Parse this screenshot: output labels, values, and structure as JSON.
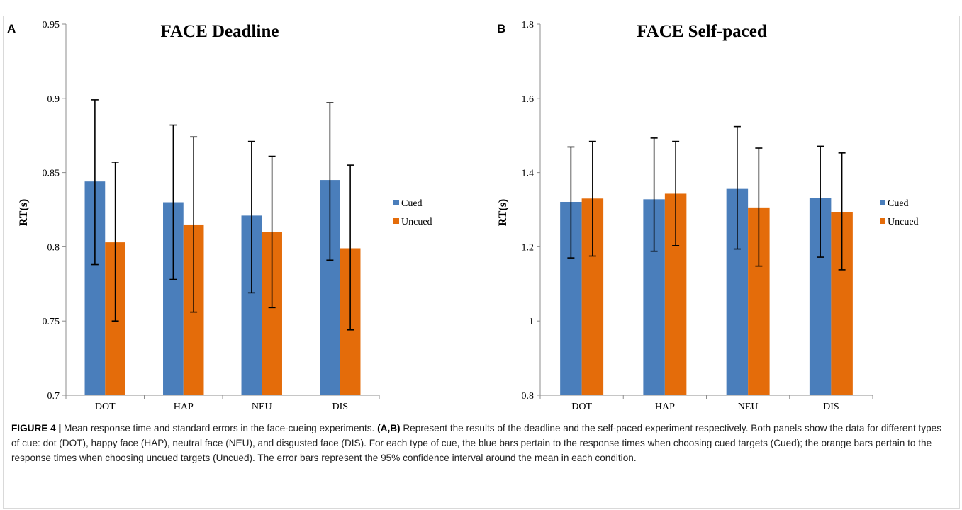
{
  "colors": {
    "cued": "#4a7ebb",
    "uncued": "#e46c0a",
    "axis": "#8c8c8c",
    "errorbar": "#000000"
  },
  "chart_data": [
    {
      "panel": "A",
      "type": "bar",
      "title": "FACE Deadline",
      "ylabel": "RT(s)",
      "xlabel": "",
      "categories": [
        "DOT",
        "HAP",
        "NEU",
        "DIS"
      ],
      "ylim": [
        0.7,
        0.95
      ],
      "yticks": [
        "0.7",
        "0.75",
        "0.8",
        "0.85",
        "0.9",
        "0.95"
      ],
      "grid": false,
      "legend": "right",
      "series": [
        {
          "name": "Cued",
          "values": [
            0.844,
            0.83,
            0.821,
            0.845
          ],
          "err_low": [
            0.788,
            0.778,
            0.769,
            0.791
          ],
          "err_high": [
            0.899,
            0.882,
            0.871,
            0.897
          ]
        },
        {
          "name": "Uncued",
          "values": [
            0.803,
            0.815,
            0.81,
            0.799
          ],
          "err_low": [
            0.75,
            0.756,
            0.759,
            0.744
          ],
          "err_high": [
            0.857,
            0.874,
            0.861,
            0.855
          ]
        }
      ]
    },
    {
      "panel": "B",
      "type": "bar",
      "title": "FACE Self-paced",
      "ylabel": "RT(s)",
      "xlabel": "",
      "categories": [
        "DOT",
        "HAP",
        "NEU",
        "DIS"
      ],
      "ylim": [
        0.8,
        1.8
      ],
      "yticks": [
        "0.8",
        "1",
        "1.2",
        "1.4",
        "1.6",
        "1.8"
      ],
      "grid": false,
      "legend": "right",
      "series": [
        {
          "name": "Cued",
          "values": [
            1.321,
            1.328,
            1.356,
            1.331
          ],
          "err_low": [
            1.17,
            1.188,
            1.194,
            1.172
          ],
          "err_high": [
            1.469,
            1.493,
            1.524,
            1.471
          ]
        },
        {
          "name": "Uncued",
          "values": [
            1.33,
            1.343,
            1.306,
            1.294
          ],
          "err_low": [
            1.175,
            1.203,
            1.148,
            1.138
          ],
          "err_high": [
            1.484,
            1.484,
            1.466,
            1.453
          ]
        }
      ]
    }
  ],
  "caption": {
    "label": "FIGURE 4 |",
    "text1": " Mean response time and standard errors in the face-cueing experiments. ",
    "panels_ref": "(A,B)",
    "text2": " Represent the results of the deadline and the self-paced experiment respectively. Both panels show the data for different types of cue: dot (DOT), happy face (HAP), neutral face (NEU), and disgusted face (DIS). For each type of cue, the blue bars pertain to the response times when choosing cued targets (Cued); the orange bars pertain to the response times when choosing uncued targets (Uncued). The error bars represent the 95% confidence interval around the mean in each condition."
  }
}
